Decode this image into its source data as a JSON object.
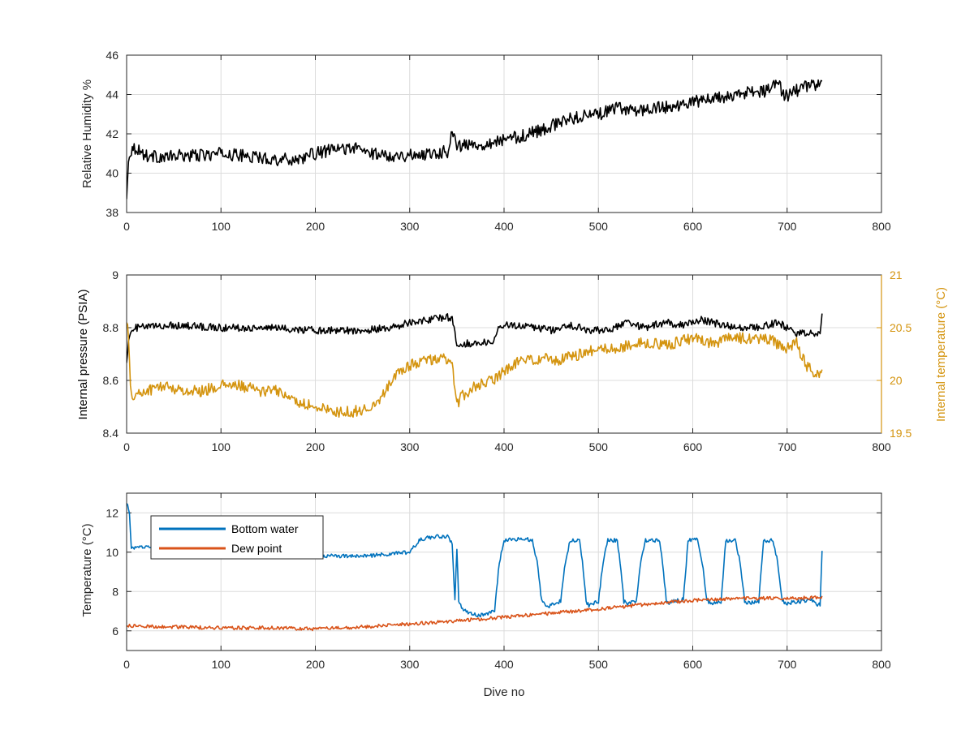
{
  "colors": {
    "black": "#000000",
    "humidity": "#000000",
    "pressure": "#000000",
    "internal_temperature": "#D4940F",
    "bottom_water": "#0072BD",
    "dew_point": "#D95319",
    "axis": "#262626",
    "grid": "#dcdcdc"
  },
  "chart_data": [
    {
      "type": "line",
      "xlabel": "",
      "ylabel": "Relative Humidity %",
      "xlim": [
        0,
        800
      ],
      "ylim": [
        38,
        46
      ],
      "xticks": [
        "0",
        "100",
        "200",
        "300",
        "400",
        "500",
        "600",
        "700",
        "800"
      ],
      "yticks": [
        "38",
        "40",
        "42",
        "44",
        "46"
      ],
      "grid": true,
      "series": [
        {
          "x": [
            0,
            2,
            5,
            10,
            20,
            40,
            60,
            80,
            100,
            120,
            140,
            160,
            180,
            200,
            220,
            240,
            260,
            280,
            300,
            320,
            340,
            345,
            350,
            360,
            380,
            400,
            420,
            440,
            460,
            480,
            500,
            520,
            540,
            560,
            580,
            600,
            620,
            640,
            660,
            680,
            690,
            695,
            700,
            710,
            720,
            730,
            737
          ],
          "y": [
            38.6,
            40.8,
            41.2,
            41.3,
            40.9,
            40.8,
            40.9,
            40.9,
            41.0,
            40.9,
            40.8,
            40.7,
            40.7,
            41.0,
            41.2,
            41.3,
            41.0,
            40.9,
            40.9,
            41.0,
            41.1,
            42.2,
            41.4,
            41.4,
            41.5,
            41.7,
            41.9,
            42.2,
            42.6,
            42.9,
            43.0,
            43.3,
            43.2,
            43.3,
            43.4,
            43.6,
            43.8,
            43.9,
            44.1,
            44.2,
            44.7,
            44.1,
            43.9,
            44.2,
            44.4,
            44.5,
            44.6
          ],
          "noise": 0.32
        }
      ]
    },
    {
      "type": "line",
      "xlabel": "",
      "ylabel": "Internal pressure (PSIA)",
      "ylabel_right": "Internal temperature (°C)",
      "xlim": [
        0,
        800
      ],
      "ylim": [
        8.4,
        9
      ],
      "ylim_right": [
        19.5,
        21
      ],
      "xticks": [
        "0",
        "100",
        "200",
        "300",
        "400",
        "500",
        "600",
        "700",
        "800"
      ],
      "yticks": [
        "8.4",
        "8.6",
        "8.8",
        "9"
      ],
      "yticks_right": [
        "19.5",
        "20",
        "20.5",
        "21"
      ],
      "grid": true,
      "series": [
        {
          "axis": "left",
          "x": [
            0,
            3,
            10,
            50,
            100,
            150,
            200,
            250,
            280,
            300,
            320,
            340,
            345,
            350,
            370,
            390,
            395,
            420,
            450,
            470,
            480,
            490,
            510,
            530,
            550,
            570,
            590,
            610,
            630,
            650,
            670,
            690,
            710,
            730,
            735,
            737
          ],
          "y": [
            8.68,
            8.77,
            8.8,
            8.81,
            8.8,
            8.8,
            8.79,
            8.79,
            8.8,
            8.82,
            8.83,
            8.84,
            8.83,
            8.74,
            8.74,
            8.75,
            8.81,
            8.81,
            8.79,
            8.81,
            8.8,
            8.79,
            8.79,
            8.82,
            8.8,
            8.82,
            8.81,
            8.83,
            8.81,
            8.8,
            8.8,
            8.82,
            8.78,
            8.78,
            8.78,
            8.84
          ],
          "noise": 0.014
        },
        {
          "axis": "right",
          "x": [
            0,
            2,
            4,
            8,
            20,
            40,
            60,
            80,
            100,
            120,
            140,
            160,
            180,
            200,
            220,
            240,
            260,
            270,
            280,
            300,
            320,
            340,
            345,
            350,
            355,
            370,
            390,
            400,
            420,
            440,
            460,
            480,
            500,
            520,
            540,
            560,
            580,
            600,
            620,
            640,
            660,
            680,
            700,
            710,
            720,
            730,
            737
          ],
          "y": [
            20.6,
            20.4,
            19.9,
            19.85,
            19.9,
            19.95,
            19.9,
            19.9,
            19.95,
            19.95,
            19.9,
            19.9,
            19.8,
            19.75,
            19.7,
            19.7,
            19.75,
            19.85,
            20.0,
            20.15,
            20.2,
            20.2,
            20.15,
            19.75,
            19.85,
            19.95,
            20.0,
            20.1,
            20.2,
            20.2,
            20.2,
            20.25,
            20.3,
            20.3,
            20.35,
            20.35,
            20.35,
            20.4,
            20.35,
            20.4,
            20.4,
            20.4,
            20.3,
            20.35,
            20.15,
            20.05,
            20.1
          ],
          "noise": 0.055
        }
      ]
    },
    {
      "type": "line",
      "xlabel": "Dive no",
      "ylabel": "Temperature (°C)",
      "xlim": [
        0,
        800
      ],
      "ylim": [
        5,
        13
      ],
      "xticks": [
        "0",
        "100",
        "200",
        "300",
        "400",
        "500",
        "600",
        "700",
        "800"
      ],
      "yticks": [
        "6",
        "8",
        "10",
        "12"
      ],
      "grid": true,
      "legend": "top-left",
      "series": [
        {
          "name": "Bottom water",
          "x": [
            0,
            3,
            5,
            10,
            20,
            50,
            100,
            150,
            200,
            250,
            280,
            300,
            305,
            310,
            320,
            330,
            340,
            345,
            348,
            350,
            352,
            355,
            360,
            370,
            380,
            390,
            395,
            400,
            420,
            430,
            435,
            440,
            445,
            450,
            460,
            465,
            470,
            480,
            483,
            487,
            490,
            500,
            505,
            510,
            520,
            523,
            527,
            530,
            540,
            545,
            550,
            565,
            568,
            572,
            575,
            580,
            590,
            595,
            605,
            610,
            615,
            620,
            630,
            635,
            645,
            650,
            655,
            660,
            670,
            675,
            685,
            690,
            695,
            700,
            710,
            720,
            725,
            730,
            735,
            737
          ],
          "y": [
            12.5,
            12.0,
            10.2,
            10.2,
            10.3,
            10.25,
            10.15,
            10.0,
            9.8,
            9.8,
            9.9,
            10.0,
            10.3,
            10.6,
            10.75,
            10.8,
            10.8,
            10.4,
            7.5,
            10.2,
            7.5,
            7.2,
            7.0,
            6.8,
            6.8,
            7.0,
            9.5,
            10.6,
            10.7,
            10.6,
            9.5,
            7.5,
            7.2,
            7.3,
            7.5,
            9.5,
            10.6,
            10.6,
            9.5,
            7.5,
            7.3,
            7.5,
            9.5,
            10.6,
            10.6,
            9.5,
            7.5,
            7.4,
            7.5,
            9.5,
            10.6,
            10.6,
            9.5,
            7.5,
            7.4,
            7.5,
            7.6,
            10.6,
            10.7,
            9.5,
            7.5,
            7.4,
            7.5,
            10.6,
            10.6,
            9.5,
            7.5,
            7.4,
            7.5,
            10.6,
            10.6,
            9.5,
            7.5,
            7.4,
            7.5,
            7.5,
            7.6,
            7.4,
            7.3,
            10.1
          ],
          "noise": 0.1
        },
        {
          "name": "Dew point",
          "x": [
            0,
            50,
            100,
            150,
            200,
            250,
            300,
            350,
            400,
            450,
            500,
            550,
            600,
            650,
            700,
            737
          ],
          "y": [
            6.25,
            6.2,
            6.15,
            6.15,
            6.1,
            6.2,
            6.35,
            6.5,
            6.7,
            6.9,
            7.1,
            7.35,
            7.55,
            7.65,
            7.65,
            7.7
          ],
          "noise": 0.09
        }
      ]
    }
  ]
}
